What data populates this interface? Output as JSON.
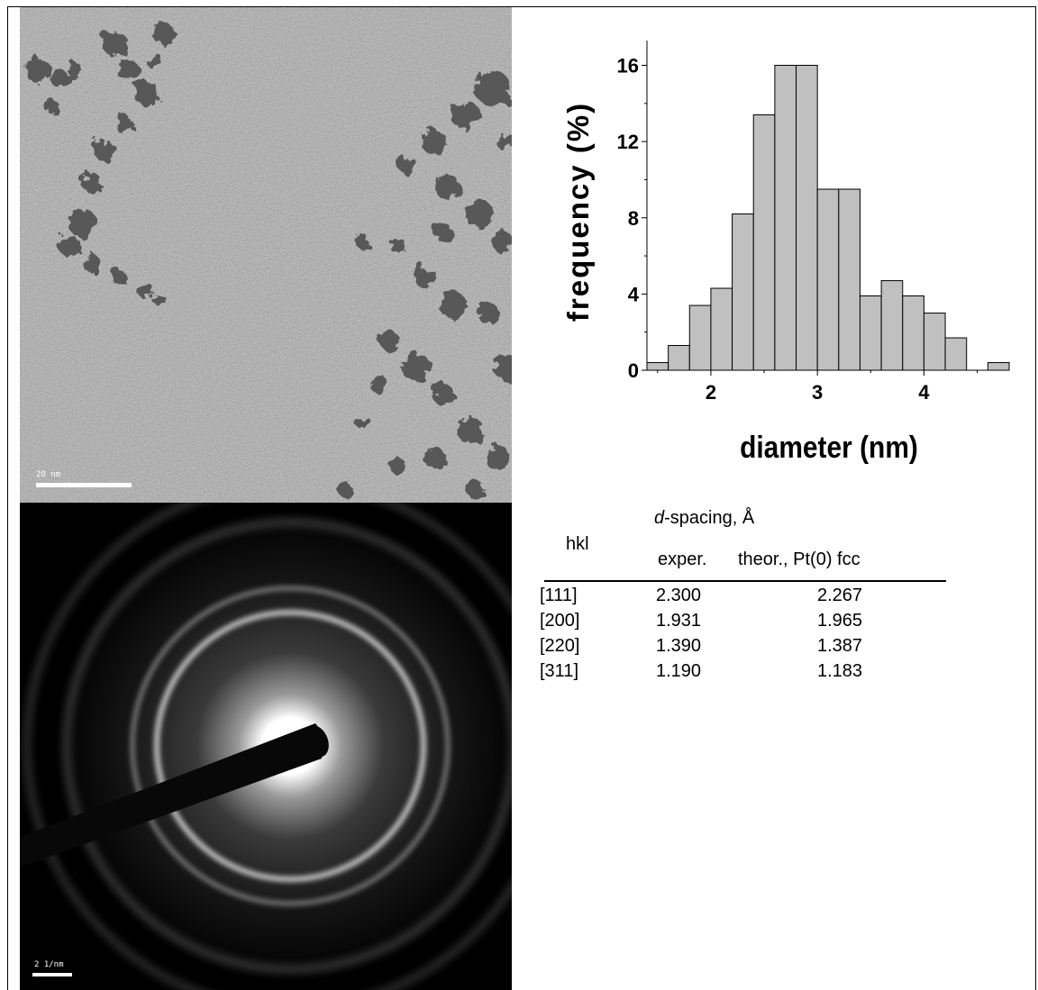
{
  "tem_image": {
    "scale_label": "20 nm"
  },
  "saed_image": {
    "scale_label": "2 1/nm"
  },
  "chart_data": {
    "type": "bar",
    "xlabel": "diameter (nm)",
    "ylabel": "frequency (%)",
    "xlim": [
      1.4,
      4.8
    ],
    "ylim": [
      0,
      17.3
    ],
    "xticks": [
      "2",
      "3",
      "4"
    ],
    "yticks": [
      "0",
      "4",
      "8",
      "12",
      "16"
    ],
    "bins": [
      {
        "x0": 1.4,
        "x1": 1.6,
        "value": 0.4
      },
      {
        "x0": 1.6,
        "x1": 1.8,
        "value": 1.3
      },
      {
        "x0": 1.8,
        "x1": 2.0,
        "value": 3.4
      },
      {
        "x0": 2.0,
        "x1": 2.2,
        "value": 4.3
      },
      {
        "x0": 2.2,
        "x1": 2.4,
        "value": 8.2
      },
      {
        "x0": 2.4,
        "x1": 2.6,
        "value": 13.4
      },
      {
        "x0": 2.6,
        "x1": 2.8,
        "value": 16.0
      },
      {
        "x0": 2.8,
        "x1": 3.0,
        "value": 16.0
      },
      {
        "x0": 3.0,
        "x1": 3.2,
        "value": 9.5
      },
      {
        "x0": 3.2,
        "x1": 3.4,
        "value": 9.5
      },
      {
        "x0": 3.4,
        "x1": 3.6,
        "value": 3.9
      },
      {
        "x0": 3.6,
        "x1": 3.8,
        "value": 4.7
      },
      {
        "x0": 3.8,
        "x1": 4.0,
        "value": 3.9
      },
      {
        "x0": 4.0,
        "x1": 4.2,
        "value": 3.0
      },
      {
        "x0": 4.2,
        "x1": 4.4,
        "value": 1.7
      },
      {
        "x0": 4.4,
        "x1": 4.6,
        "value": 0.0
      },
      {
        "x0": 4.6,
        "x1": 4.8,
        "value": 0.4
      }
    ],
    "bar_color": "#c0c0c0"
  },
  "table": {
    "header_group_italic": "d",
    "header_group_rest": "-spacing, Å",
    "col_hkl": "hkl",
    "col_exper": "exper.",
    "col_theor": "theor., Pt(0) fcc",
    "rows": [
      {
        "hkl": "[111]",
        "exper": "2.300",
        "theor": "2.267"
      },
      {
        "hkl": "[200]",
        "exper": "1.931",
        "theor": "1.965"
      },
      {
        "hkl": "[220]",
        "exper": "1.390",
        "theor": "1.387"
      },
      {
        "hkl": "[311]",
        "exper": "1.190",
        "theor": "1.183"
      }
    ]
  }
}
